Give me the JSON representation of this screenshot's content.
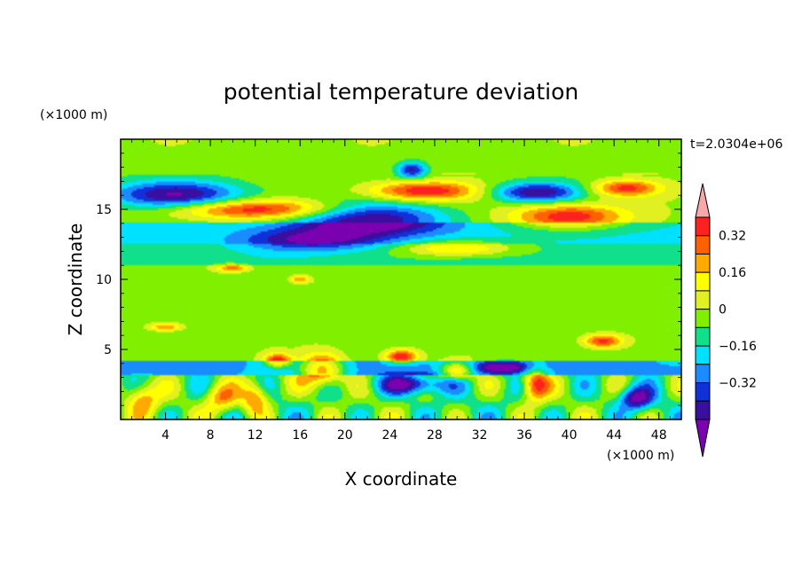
{
  "chart_data": {
    "type": "heatmap",
    "title": "potential temperature deviation",
    "xlabel": "X coordinate",
    "ylabel": "Z coordinate",
    "x_unit": "(×1000 m)",
    "y_unit": "(×1000 m)",
    "time_label": "t=2.0304e+06",
    "xlim": [
      0,
      50
    ],
    "ylim": [
      0,
      20
    ],
    "x_ticks": [
      4,
      8,
      12,
      16,
      20,
      24,
      28,
      32,
      36,
      40,
      44,
      48
    ],
    "y_ticks": [
      5,
      10,
      15
    ],
    "colorbar": {
      "levels": [
        -0.48,
        -0.4,
        -0.32,
        -0.24,
        -0.16,
        -0.08,
        0,
        0.08,
        0.16,
        0.24,
        0.32,
        0.4,
        0.48
      ],
      "labels": [
        "0.32",
        "0.16",
        "0",
        "−0.16",
        "−0.32"
      ],
      "label_values": [
        0.32,
        0.16,
        0,
        -0.16,
        -0.32
      ],
      "colors": [
        "#7a00b0",
        "#3a0fa0",
        "#1030d8",
        "#1a8cff",
        "#00e0ff",
        "#10e08a",
        "#80f000",
        "#e0f020",
        "#ffff00",
        "#ffaa00",
        "#ff6000",
        "#ff2020",
        "#f8a8a8"
      ],
      "extend": "both"
    },
    "features": [
      {
        "x": 5,
        "z": 16.0,
        "sx": 6,
        "sz": 1.0,
        "value": -0.44
      },
      {
        "x": 12,
        "z": 15.0,
        "sx": 8,
        "sz": 0.7,
        "value": 0.44
      },
      {
        "x": 22,
        "z": 14.3,
        "sx": 7,
        "sz": 1.2,
        "value": -0.44
      },
      {
        "x": 27,
        "z": 16.3,
        "sx": 5,
        "sz": 0.7,
        "value": 0.44
      },
      {
        "x": 26,
        "z": 17.8,
        "sx": 1.3,
        "sz": 0.6,
        "value": -0.4
      },
      {
        "x": 37,
        "z": 16.2,
        "sx": 4,
        "sz": 0.7,
        "value": -0.44
      },
      {
        "x": 40,
        "z": 14.5,
        "sx": 5,
        "sz": 0.9,
        "value": 0.44
      },
      {
        "x": 45,
        "z": 16.5,
        "sx": 3,
        "sz": 0.6,
        "value": 0.4
      },
      {
        "x": 30,
        "z": 12.2,
        "sx": 5,
        "sz": 0.6,
        "value": 0.3
      },
      {
        "x": 17,
        "z": 12.8,
        "sx": 6,
        "sz": 0.8,
        "value": -0.3
      },
      {
        "x": 18,
        "z": 3.5,
        "sx": 2,
        "sz": 1.2,
        "value": 0.44
      },
      {
        "x": 14,
        "z": 4.2,
        "sx": 1.2,
        "sz": 0.5,
        "value": 0.4
      },
      {
        "x": 25,
        "z": 4.5,
        "sx": 1.5,
        "sz": 0.5,
        "value": 0.44
      },
      {
        "x": 30,
        "z": 3.5,
        "sx": 1.5,
        "sz": 0.6,
        "value": 0.4
      },
      {
        "x": 37,
        "z": 2.5,
        "sx": 1.2,
        "sz": 1.2,
        "value": 0.44
      },
      {
        "x": 43,
        "z": 5.6,
        "sx": 1.8,
        "sz": 0.5,
        "value": 0.4
      },
      {
        "x": 26,
        "z": 2.5,
        "sx": 3,
        "sz": 0.7,
        "value": -0.42
      },
      {
        "x": 34,
        "z": 3.7,
        "sx": 2.5,
        "sz": 0.4,
        "value": -0.38
      },
      {
        "x": 46,
        "z": 1.5,
        "sx": 1.5,
        "sz": 0.8,
        "value": -0.44
      },
      {
        "x": 2,
        "z": 1.5,
        "sx": 1.5,
        "sz": 1.2,
        "value": 0.3
      },
      {
        "x": 9,
        "z": 1.5,
        "sx": 1.5,
        "sz": 1.0,
        "value": 0.3
      },
      {
        "x": 12,
        "z": 1.5,
        "sx": 1.2,
        "sz": 1.2,
        "value": 0.35
      },
      {
        "x": 4,
        "z": 6.6,
        "sx": 1.5,
        "sz": 0.3,
        "value": 0.3
      },
      {
        "x": 10,
        "z": 10.8,
        "sx": 1.5,
        "sz": 0.3,
        "value": 0.32
      },
      {
        "x": 16,
        "z": 10.0,
        "sx": 1.0,
        "sz": 0.3,
        "value": 0.28
      }
    ]
  }
}
